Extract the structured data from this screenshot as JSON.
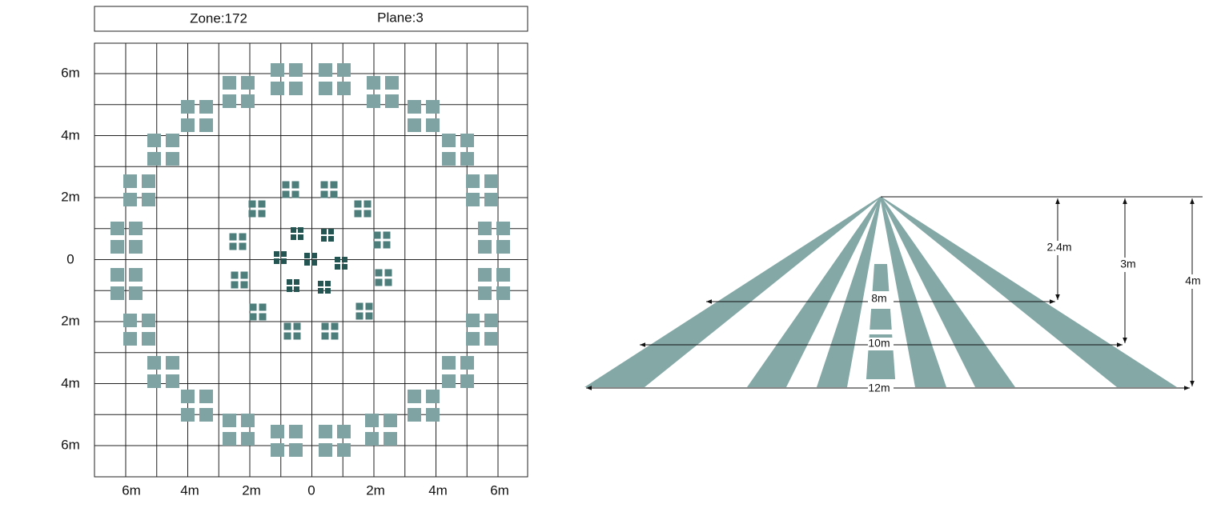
{
  "header": {
    "zone": "Zone:172",
    "plane": "Plane:3"
  },
  "grid": {
    "y_labels": [
      "6m",
      "4m",
      "2m",
      "0",
      "2m",
      "4m",
      "6m"
    ],
    "x_labels": [
      "6m",
      "4m",
      "2m",
      "0",
      "2m",
      "4m",
      "6m"
    ]
  },
  "side_view": {
    "heights": [
      "2.4m",
      "3m",
      "4m"
    ],
    "widths": [
      "8m",
      "10m",
      "12m"
    ]
  }
}
